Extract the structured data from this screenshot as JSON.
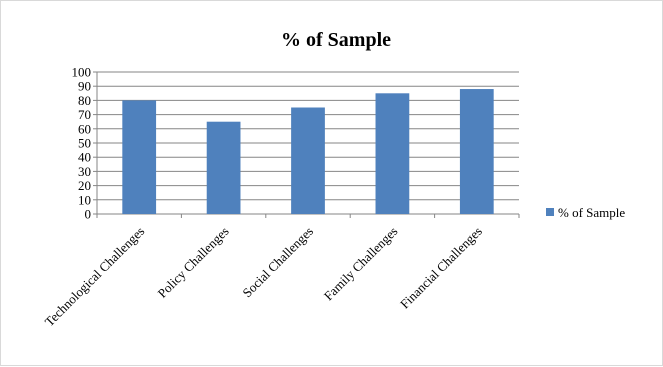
{
  "chart_data": {
    "type": "bar",
    "title": "% of Sample",
    "xlabel": "",
    "ylabel": "",
    "categories": [
      "Technological Challenges",
      "Policy Challenges",
      "Social Challenges",
      "Family Challenges",
      "Financial Challenges"
    ],
    "series": [
      {
        "name": "% of Sample",
        "values": [
          80,
          65,
          75,
          85,
          88
        ],
        "color": "#4f81bd"
      }
    ],
    "ylim": [
      0,
      100
    ],
    "yticks": [
      0,
      10,
      20,
      30,
      40,
      50,
      60,
      70,
      80,
      90,
      100
    ],
    "grid": true,
    "legend_position": "right"
  }
}
